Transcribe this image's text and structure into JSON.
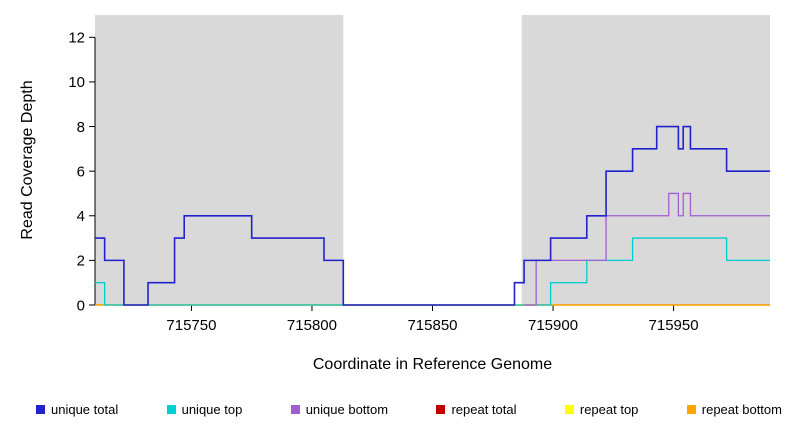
{
  "chart_data": {
    "type": "line",
    "subtype": "step",
    "title": "",
    "xlabel": "Coordinate in Reference Genome",
    "ylabel": "Read Coverage Depth",
    "xlim": [
      715710,
      715990
    ],
    "ylim": [
      0,
      13
    ],
    "xticks": [
      715750,
      715800,
      715850,
      715900,
      715950
    ],
    "yticks": [
      0,
      2,
      4,
      6,
      8,
      10,
      12
    ],
    "grid": false,
    "legend_position": "bottom",
    "background_color": "#FFFFFF",
    "shaded_color": "#D9D9D9",
    "shaded_regions": [
      {
        "x0": 715710,
        "x1": 715813
      },
      {
        "x0": 715887,
        "x1": 715990
      }
    ],
    "series": [
      {
        "name": "repeat total",
        "color": "#C00000",
        "points": [
          [
            715710,
            0
          ],
          [
            715990,
            0
          ]
        ]
      },
      {
        "name": "repeat top",
        "color": "#FFFF00",
        "points": [
          [
            715710,
            0
          ],
          [
            715990,
            0
          ]
        ]
      },
      {
        "name": "repeat bottom",
        "color": "#FFA500",
        "points": [
          [
            715710,
            0
          ],
          [
            715990,
            0
          ]
        ]
      },
      {
        "name": "unique top",
        "color": "#00CED1",
        "points": [
          [
            715710,
            1
          ],
          [
            715714,
            0
          ],
          [
            715899,
            1
          ],
          [
            715914,
            2
          ],
          [
            715933,
            3
          ],
          [
            715972,
            2
          ],
          [
            715990,
            2
          ]
        ]
      },
      {
        "name": "unique bottom",
        "color": "#A05FD0",
        "points": [
          [
            715888,
            0
          ],
          [
            715893,
            2
          ],
          [
            715922,
            4
          ],
          [
            715948,
            5
          ],
          [
            715952,
            4
          ],
          [
            715954,
            5
          ],
          [
            715957,
            4
          ],
          [
            715990,
            4
          ]
        ]
      },
      {
        "name": "unique total",
        "color": "#2222CD",
        "points": [
          [
            715710,
            3
          ],
          [
            715714,
            2
          ],
          [
            715722,
            0
          ],
          [
            715732,
            1
          ],
          [
            715743,
            3
          ],
          [
            715747,
            4
          ],
          [
            715775,
            3
          ],
          [
            715805,
            2
          ],
          [
            715813,
            0
          ],
          [
            715884,
            1
          ],
          [
            715888,
            2
          ],
          [
            715899,
            3
          ],
          [
            715914,
            4
          ],
          [
            715922,
            6
          ],
          [
            715933,
            7
          ],
          [
            715943,
            8
          ],
          [
            715952,
            7
          ],
          [
            715954,
            8
          ],
          [
            715957,
            7
          ],
          [
            715972,
            6
          ],
          [
            715990,
            6
          ]
        ]
      }
    ],
    "legend": [
      {
        "label": "unique total",
        "color": "#2222CD"
      },
      {
        "label": "unique top",
        "color": "#00CED1"
      },
      {
        "label": "unique bottom",
        "color": "#A05FD0"
      },
      {
        "label": "repeat total",
        "color": "#C00000"
      },
      {
        "label": "repeat top",
        "color": "#FFFF00"
      },
      {
        "label": "repeat bottom",
        "color": "#FFA500"
      }
    ]
  }
}
